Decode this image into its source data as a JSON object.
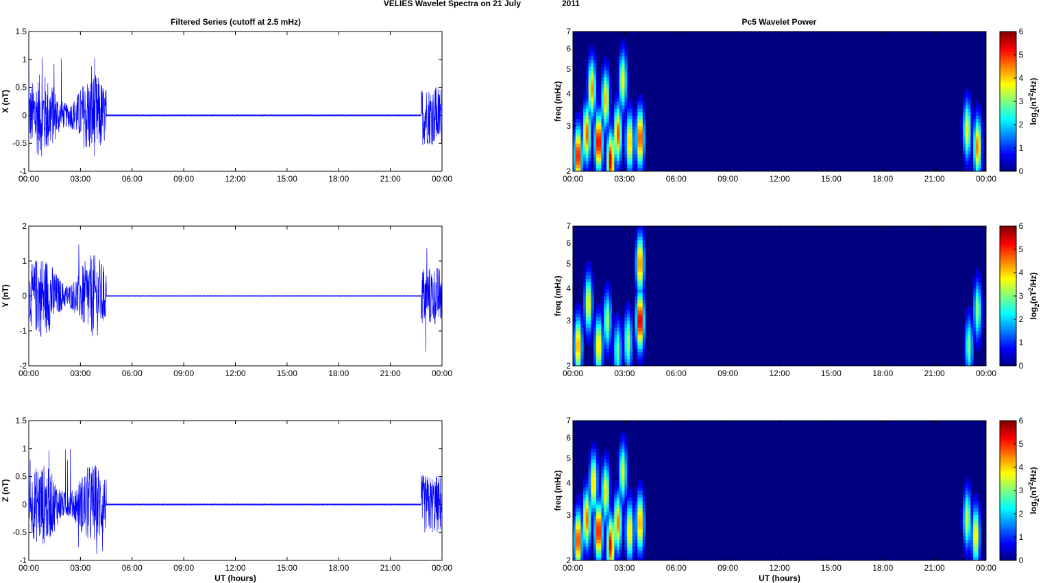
{
  "figure_title_left": "VELIES Wavelet Spectra on 21 July",
  "figure_title_right": "2011",
  "left_panel_title": "Filtered Series (cutoff at 2.5 mHz)",
  "right_panel_title": "Pc5 Wavelet Power",
  "colors": {
    "trace": "#0000ff",
    "background": "#000080"
  },
  "chart_data": [
    {
      "type": "line",
      "ylabel": "X (nT)",
      "xlabel": "",
      "xticks": [
        "00:00",
        "03:00",
        "06:00",
        "09:00",
        "12:00",
        "15:00",
        "18:00",
        "21:00",
        "00:00"
      ],
      "yticks": [
        "1.5",
        "1",
        "0.5",
        "0",
        "-0.5",
        "-1"
      ],
      "ylim": [
        -1,
        1.5
      ],
      "xlim_hours": [
        0,
        24
      ],
      "active_intervals_hours": [
        [
          0,
          4.5
        ],
        [
          22.8,
          24
        ]
      ],
      "peak_amplitude": 1.07,
      "min_amplitude": -0.93
    },
    {
      "type": "line",
      "ylabel": "Y (nT)",
      "xlabel": "",
      "xticks": [
        "00:00",
        "03:00",
        "06:00",
        "09:00",
        "12:00",
        "15:00",
        "18:00",
        "21:00",
        "00:00"
      ],
      "yticks": [
        "2",
        "1",
        "0",
        "-1",
        "-2"
      ],
      "ylim": [
        -2,
        2
      ],
      "xlim_hours": [
        0,
        24
      ],
      "active_intervals_hours": [
        [
          0,
          4.5
        ],
        [
          22.8,
          24
        ]
      ],
      "peak_amplitude": 1.58,
      "min_amplitude": -1.7
    },
    {
      "type": "line",
      "ylabel": "Z (nT)",
      "xlabel": "UT (hours)",
      "xticks": [
        "00:00",
        "03:00",
        "06:00",
        "09:00",
        "12:00",
        "15:00",
        "18:00",
        "21:00",
        "00:00"
      ],
      "yticks": [
        "1.5",
        "1",
        "0.5",
        "0",
        "-0.5",
        "-1"
      ],
      "ylim": [
        -1,
        1.5
      ],
      "xlim_hours": [
        0,
        24
      ],
      "active_intervals_hours": [
        [
          0,
          4.5
        ],
        [
          22.8,
          24
        ]
      ],
      "peak_amplitude": 1.06,
      "min_amplitude": -0.95
    },
    {
      "type": "heatmap",
      "ylabel": "freq (mHz)",
      "xlabel": "",
      "xticks": [
        "00:00",
        "03:00",
        "06:00",
        "09:00",
        "12:00",
        "15:00",
        "18:00",
        "21:00",
        "00:00"
      ],
      "yticks": [
        "7",
        "6",
        "5",
        "4",
        "3",
        "2"
      ],
      "ylim": [
        2,
        7
      ],
      "yscale": "log",
      "colorbar_ticks": [
        "6",
        "5",
        "4",
        "3",
        "2",
        "1",
        "0"
      ],
      "colorbar_label_base": "log",
      "colorbar_label_sub": "2",
      "colorbar_label_mid": "(nT",
      "colorbar_label_sup": "2",
      "colorbar_label_end": "/Hz)",
      "clim": [
        0,
        6
      ],
      "bursts": [
        {
          "t": 0.3,
          "f": 2.3,
          "p": 5.6
        },
        {
          "t": 0.8,
          "f": 2.8,
          "p": 4.8
        },
        {
          "t": 1.1,
          "f": 4.2,
          "p": 4.5
        },
        {
          "t": 1.5,
          "f": 2.6,
          "p": 5.8
        },
        {
          "t": 1.9,
          "f": 3.8,
          "p": 4.2
        },
        {
          "t": 2.2,
          "f": 2.2,
          "p": 5.5
        },
        {
          "t": 2.6,
          "f": 2.8,
          "p": 4.9
        },
        {
          "t": 2.9,
          "f": 4.5,
          "p": 3.8
        },
        {
          "t": 3.3,
          "f": 2.6,
          "p": 4.4
        },
        {
          "t": 3.9,
          "f": 2.7,
          "p": 5.2
        },
        {
          "t": 22.9,
          "f": 2.9,
          "p": 3.9
        },
        {
          "t": 23.5,
          "f": 2.5,
          "p": 4.6
        }
      ]
    },
    {
      "type": "heatmap",
      "ylabel": "freq (mHz)",
      "xlabel": "",
      "xticks": [
        "00:00",
        "03:00",
        "06:00",
        "09:00",
        "12:00",
        "15:00",
        "18:00",
        "21:00",
        "00:00"
      ],
      "yticks": [
        "7",
        "6",
        "5",
        "4",
        "3",
        "2"
      ],
      "ylim": [
        2,
        7
      ],
      "yscale": "log",
      "colorbar_ticks": [
        "6",
        "5",
        "4",
        "3",
        "2",
        "1",
        "0"
      ],
      "colorbar_label_base": "log",
      "colorbar_label_sub": "2",
      "colorbar_label_mid": "(nT",
      "colorbar_label_sup": "2",
      "colorbar_label_end": "/Hz)",
      "clim": [
        0,
        6
      ],
      "bursts": [
        {
          "t": 0.3,
          "f": 2.4,
          "p": 4.6
        },
        {
          "t": 0.9,
          "f": 3.5,
          "p": 3.9
        },
        {
          "t": 1.5,
          "f": 2.4,
          "p": 4.2
        },
        {
          "t": 2.0,
          "f": 3.0,
          "p": 3.3
        },
        {
          "t": 2.6,
          "f": 2.3,
          "p": 3.0
        },
        {
          "t": 3.2,
          "f": 2.5,
          "p": 3.4
        },
        {
          "t": 3.9,
          "f": 3.0,
          "p": 5.9
        },
        {
          "t": 3.9,
          "f": 5.0,
          "p": 4.8
        },
        {
          "t": 23.0,
          "f": 2.4,
          "p": 3.0
        },
        {
          "t": 23.5,
          "f": 3.3,
          "p": 3.2
        }
      ]
    },
    {
      "type": "heatmap",
      "ylabel": "freq (mHz)",
      "xlabel": "UT (hours)",
      "xticks": [
        "00:00",
        "03:00",
        "06:00",
        "09:00",
        "12:00",
        "15:00",
        "18:00",
        "21:00",
        "00:00"
      ],
      "yticks": [
        "7",
        "6",
        "5",
        "4",
        "3",
        "2"
      ],
      "ylim": [
        2,
        7
      ],
      "yscale": "log",
      "colorbar_ticks": [
        "6",
        "5",
        "4",
        "3",
        "2",
        "1",
        "0"
      ],
      "colorbar_label_base": "log",
      "colorbar_label_sub": "2",
      "colorbar_label_mid": "(nT",
      "colorbar_label_sup": "2",
      "colorbar_label_end": "/Hz)",
      "clim": [
        0,
        6
      ],
      "bursts": [
        {
          "t": 0.3,
          "f": 2.4,
          "p": 5.3
        },
        {
          "t": 0.8,
          "f": 2.9,
          "p": 4.7
        },
        {
          "t": 1.2,
          "f": 4.0,
          "p": 4.3
        },
        {
          "t": 1.5,
          "f": 2.6,
          "p": 5.6
        },
        {
          "t": 1.9,
          "f": 3.7,
          "p": 4.0
        },
        {
          "t": 2.2,
          "f": 2.3,
          "p": 5.4
        },
        {
          "t": 2.6,
          "f": 2.8,
          "p": 4.6
        },
        {
          "t": 2.9,
          "f": 4.4,
          "p": 3.6
        },
        {
          "t": 3.3,
          "f": 2.6,
          "p": 4.2
        },
        {
          "t": 3.9,
          "f": 2.8,
          "p": 4.6
        },
        {
          "t": 22.9,
          "f": 2.9,
          "p": 3.6
        },
        {
          "t": 23.4,
          "f": 2.5,
          "p": 4.1
        }
      ]
    }
  ]
}
